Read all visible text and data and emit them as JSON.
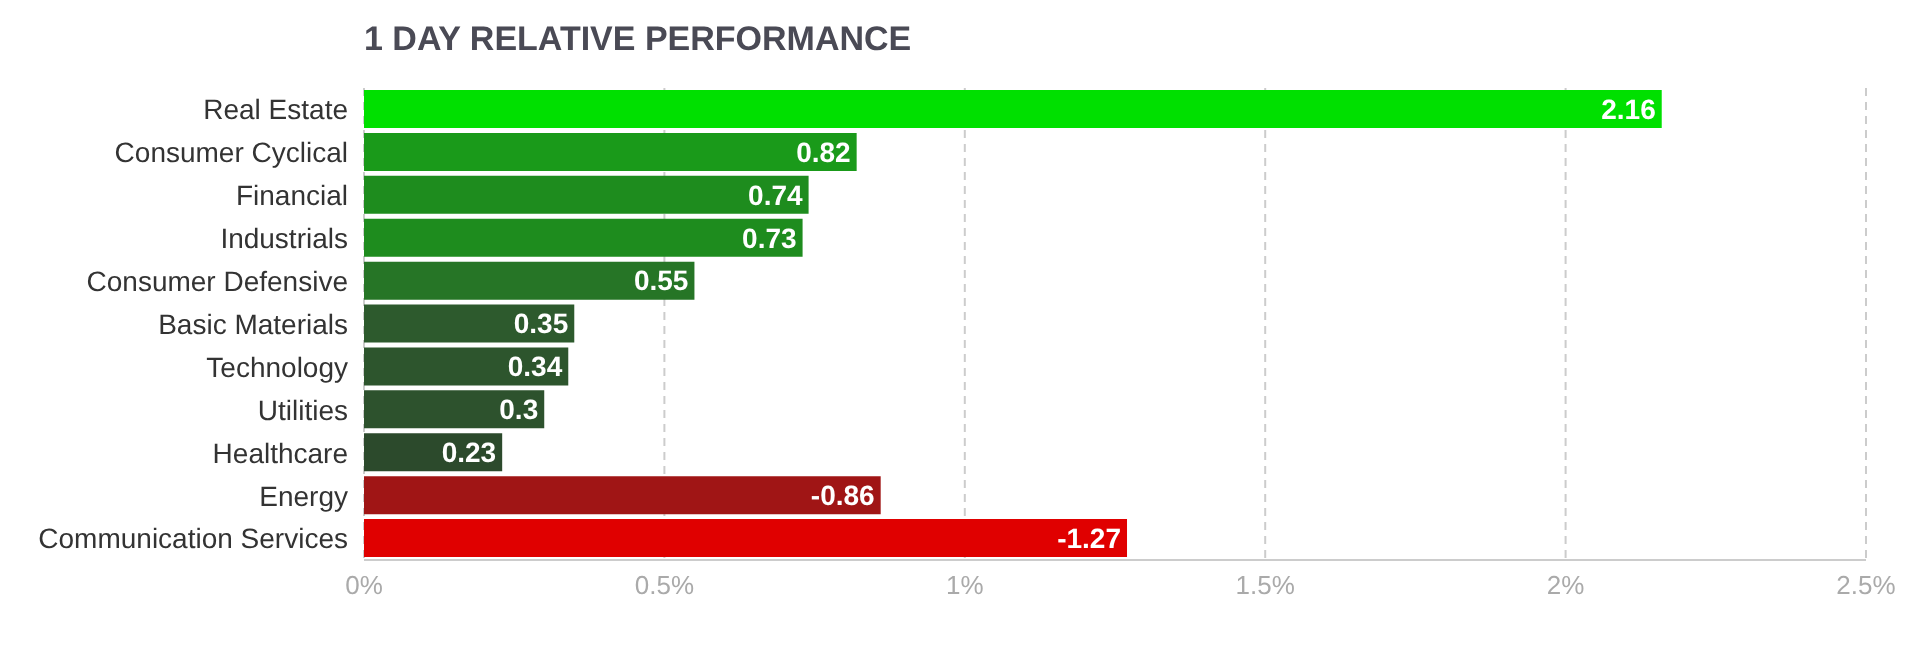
{
  "chart_data": {
    "type": "bar",
    "orientation": "horizontal",
    "title": "1 DAY RELATIVE PERFORMANCE",
    "categories": [
      "Real Estate",
      "Consumer Cyclical",
      "Financial",
      "Industrials",
      "Consumer Defensive",
      "Basic Materials",
      "Technology",
      "Utilities",
      "Healthcare",
      "Energy",
      "Communication Services"
    ],
    "values": [
      2.16,
      0.82,
      0.74,
      0.73,
      0.55,
      0.35,
      0.34,
      0.3,
      0.23,
      -0.86,
      -1.27
    ],
    "base": [
      0,
      0,
      0,
      0,
      0,
      0,
      0,
      0,
      0,
      0.86,
      1.27
    ],
    "colors": [
      "#00e000",
      "#1a9a1a",
      "#1e8c1e",
      "#1e8c1e",
      "#267526",
      "#2d5a2d",
      "#2d552d",
      "#2d522d",
      "#2c4a2c",
      "#a01515",
      "#e00000"
    ],
    "data_labels": true,
    "xlim": [
      0,
      2.5
    ],
    "xticks": [
      {
        "value": 0,
        "label": "0%"
      },
      {
        "value": 0.5,
        "label": "0.5%"
      },
      {
        "value": 1,
        "label": "1%"
      },
      {
        "value": 1.5,
        "label": "1.5%"
      },
      {
        "value": 2,
        "label": "2%"
      },
      {
        "value": 2.5,
        "label": "2.5%"
      }
    ],
    "grid": "x"
  }
}
